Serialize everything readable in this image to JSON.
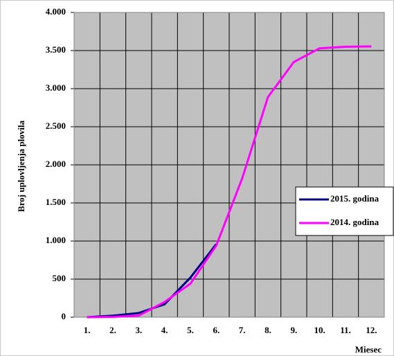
{
  "chart_data": {
    "type": "line",
    "y_label": "Broj uplovljenja plovila",
    "x_label": "Miesec",
    "categories": [
      "1.",
      "2.",
      "3.",
      "4.",
      "5.",
      "6.",
      "7.",
      "8.",
      "9.",
      "10.",
      "11.",
      "12."
    ],
    "series": [
      {
        "name": "2015. godina",
        "color": "#000080",
        "values": [
          0,
          20,
          55,
          170,
          520,
          960,
          null,
          null,
          null,
          null,
          null,
          null
        ]
      },
      {
        "name": "2014. godina",
        "color": "#ff00ff",
        "values": [
          0,
          5,
          20,
          200,
          440,
          940,
          1820,
          2890,
          3350,
          3530,
          3550,
          3555
        ]
      }
    ],
    "ylim": [
      0,
      4000
    ],
    "yticks": [
      0,
      500,
      {
        "value": 1000,
        "label": "1.000"
      },
      {
        "value": 1500,
        "label": "1.500"
      },
      {
        "value": 2000,
        "label": "2.000"
      },
      {
        "value": 2500,
        "label": "2.500"
      },
      {
        "value": 3000,
        "label": "3.000"
      },
      {
        "value": 3500,
        "label": "3.500"
      },
      {
        "value": 4000,
        "label": "4.000"
      }
    ],
    "grid": true,
    "legend": "right"
  }
}
